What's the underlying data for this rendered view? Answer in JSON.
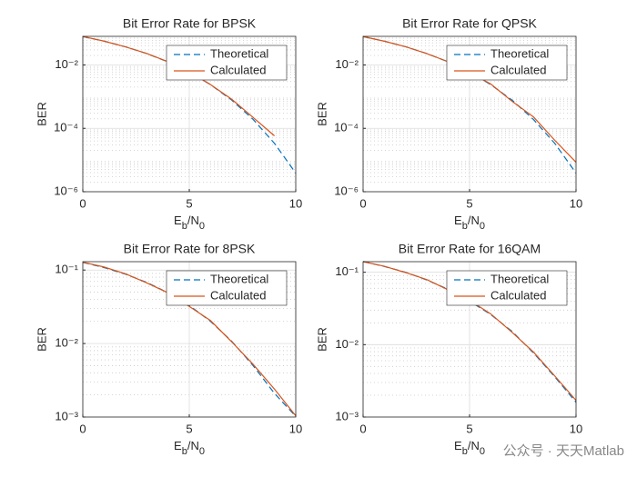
{
  "chart_data": [
    {
      "type": "line",
      "title": "Bit Error Rate for BPSK",
      "xlabel": [
        "E",
        "b",
        "/N",
        "0"
      ],
      "ylabel": "BER",
      "x": [
        0,
        1,
        2,
        3,
        4,
        5,
        6,
        7,
        8,
        9,
        10
      ],
      "series": [
        {
          "name": "Theoretical",
          "color": "#0072BD",
          "dashed": true,
          "values": [
            0.0786,
            0.0563,
            0.0375,
            0.0229,
            0.0125,
            0.00595,
            0.00239,
            0.000773,
            0.000191,
            3.36e-05,
            3.87e-06
          ]
        },
        {
          "name": "Calculated",
          "color": "#D95319",
          "dashed": false,
          "values": [
            0.079,
            0.0565,
            0.0372,
            0.0231,
            0.0127,
            0.0061,
            0.0024,
            0.00082,
            0.00022,
            5.8e-05,
            null
          ]
        }
      ],
      "xlim": [
        0,
        10
      ],
      "xticks": [
        0,
        5,
        10
      ],
      "ylim": [
        1e-06,
        0.08
      ],
      "log_y": true,
      "yticks": [
        {
          "value": 1e-06,
          "label": "10⁻⁶"
        },
        {
          "value": 0.0001,
          "label": "10⁻⁴"
        },
        {
          "value": 0.01,
          "label": "10⁻²"
        }
      ],
      "grid": true,
      "minor_grid": true,
      "legend": "upper right"
    },
    {
      "type": "line",
      "title": "Bit Error Rate for QPSK",
      "xlabel": [
        "E",
        "b",
        "/N",
        "0"
      ],
      "ylabel": "BER",
      "x": [
        0,
        1,
        2,
        3,
        4,
        5,
        6,
        7,
        8,
        9,
        10
      ],
      "series": [
        {
          "name": "Theoretical",
          "color": "#0072BD",
          "dashed": true,
          "values": [
            0.0786,
            0.0563,
            0.0375,
            0.0229,
            0.0125,
            0.00595,
            0.00239,
            0.000773,
            0.000191,
            3.36e-05,
            3.87e-06
          ]
        },
        {
          "name": "Calculated",
          "color": "#D95319",
          "dashed": false,
          "values": [
            0.0788,
            0.0561,
            0.0377,
            0.0227,
            0.0126,
            0.0058,
            0.0025,
            0.00071,
            0.00023,
            4.2e-05,
            8.5e-06
          ]
        }
      ],
      "xlim": [
        0,
        10
      ],
      "xticks": [
        0,
        5,
        10
      ],
      "ylim": [
        1e-06,
        0.08
      ],
      "log_y": true,
      "yticks": [
        {
          "value": 1e-06,
          "label": "10⁻⁶"
        },
        {
          "value": 0.0001,
          "label": "10⁻⁴"
        },
        {
          "value": 0.01,
          "label": "10⁻²"
        }
      ],
      "grid": true,
      "minor_grid": true,
      "legend": "upper right"
    },
    {
      "type": "line",
      "title": "Bit Error Rate for 8PSK",
      "xlabel": [
        "E",
        "b",
        "/N",
        "0"
      ],
      "ylabel": "BER",
      "x": [
        0,
        1,
        2,
        3,
        4,
        5,
        6,
        7,
        8,
        9,
        10
      ],
      "series": [
        {
          "name": "Theoretical",
          "color": "#0072BD",
          "dashed": true,
          "values": [
            0.127,
            0.108,
            0.088,
            0.068,
            0.049,
            0.033,
            0.02,
            0.0107,
            0.005,
            0.0021,
            0.00102
          ]
        },
        {
          "name": "Calculated",
          "color": "#D95319",
          "dashed": false,
          "values": [
            0.128,
            0.11,
            0.089,
            0.067,
            0.049,
            0.032,
            0.0205,
            0.0105,
            0.0052,
            0.0024,
            0.00104
          ]
        }
      ],
      "xlim": [
        0,
        10
      ],
      "xticks": [
        0,
        5,
        10
      ],
      "ylim": [
        0.001,
        0.13
      ],
      "log_y": true,
      "yticks": [
        {
          "value": 0.001,
          "label": "10⁻³"
        },
        {
          "value": 0.01,
          "label": "10⁻²"
        },
        {
          "value": 0.1,
          "label": "10⁻¹"
        }
      ],
      "grid": true,
      "minor_grid": true,
      "legend": "upper right"
    },
    {
      "type": "line",
      "title": "Bit Error Rate for 16QAM",
      "xlabel": [
        "E",
        "b",
        "/N",
        "0"
      ],
      "ylabel": "BER",
      "x": [
        0,
        1,
        2,
        3,
        4,
        5,
        6,
        7,
        8,
        9,
        10
      ],
      "series": [
        {
          "name": "Theoretical",
          "color": "#0072BD",
          "dashed": true,
          "values": [
            0.141,
            0.12,
            0.1,
            0.078,
            0.058,
            0.04,
            0.026,
            0.0152,
            0.0077,
            0.0036,
            0.0016
          ]
        },
        {
          "name": "Calculated",
          "color": "#D95319",
          "dashed": false,
          "values": [
            0.14,
            0.121,
            0.099,
            0.079,
            0.057,
            0.041,
            0.0265,
            0.0148,
            0.0079,
            0.0037,
            0.0017
          ]
        }
      ],
      "xlim": [
        0,
        10
      ],
      "xticks": [
        0,
        5,
        10
      ],
      "ylim": [
        0.001,
        0.14
      ],
      "log_y": true,
      "yticks": [
        {
          "value": 0.001,
          "label": "10⁻³"
        },
        {
          "value": 0.01,
          "label": "10⁻²"
        },
        {
          "value": 0.1,
          "label": "10⁻¹"
        }
      ],
      "grid": true,
      "minor_grid": true,
      "legend": "upper right"
    }
  ],
  "watermark": "公众号 · 天天Matlab"
}
